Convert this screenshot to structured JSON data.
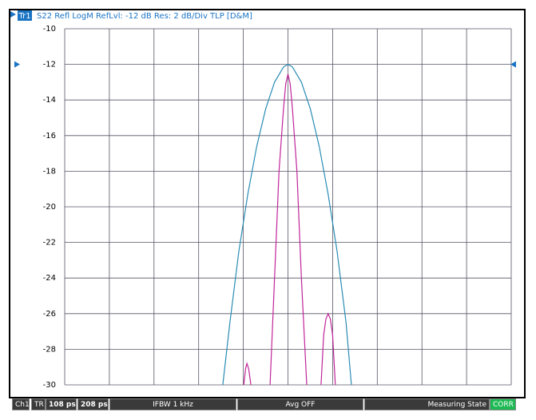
{
  "header": {
    "trace": "Tr1",
    "text": "S22 Refl LogM RefLvl: -12  dB Res: 2  dB/Div  TLP [D&M]"
  },
  "chart_data": {
    "type": "line",
    "xlim": [
      108,
      208
    ],
    "xticks": [
      108,
      118,
      128,
      138,
      148,
      158,
      168,
      178,
      188,
      198,
      208
    ],
    "ylim": [
      -30,
      -10
    ],
    "yticks": [
      -10,
      -12,
      -14,
      -16,
      -18,
      -20,
      -22,
      -24,
      -26,
      -28,
      -30
    ],
    "grid": true,
    "ref_level": -12,
    "series": [
      {
        "color": "#2a8cb4",
        "x": [
          143.4,
          145,
          147,
          149,
          151,
          153,
          155,
          157,
          158,
          159,
          161,
          163,
          165,
          167,
          169,
          171,
          172.2
        ],
        "values": [
          -30,
          -26.5,
          -22.5,
          -19.3,
          -16.6,
          -14.5,
          -13.0,
          -12.15,
          -12.0,
          -12.15,
          -13.0,
          -14.5,
          -16.6,
          -19.3,
          -22.5,
          -26.5,
          -30
        ]
      },
      {
        "color": "#c0259a",
        "x": [
          148.1,
          148.5,
          148.8,
          149.2,
          149.7,
          null,
          154,
          155,
          156,
          157,
          157.5,
          158,
          158.5,
          159,
          160,
          161,
          162.2,
          null,
          165.4,
          166,
          166.5,
          167,
          167.5,
          168,
          168.6
        ],
        "values": [
          -30,
          -29.1,
          -28.8,
          -29.1,
          -30,
          null,
          -30,
          -24,
          -18,
          -14.5,
          -13.1,
          -12.55,
          -13.1,
          -14.5,
          -18,
          -24,
          -30,
          null,
          -30,
          -27.2,
          -26.3,
          -26.0,
          -26.3,
          -27.2,
          -30
        ]
      }
    ]
  },
  "status": [
    "Ch1",
    "TR",
    "108 ps",
    "208 ps",
    "IFBW 1 kHz",
    "Avg OFF",
    "Measuring State",
    "CORR"
  ]
}
